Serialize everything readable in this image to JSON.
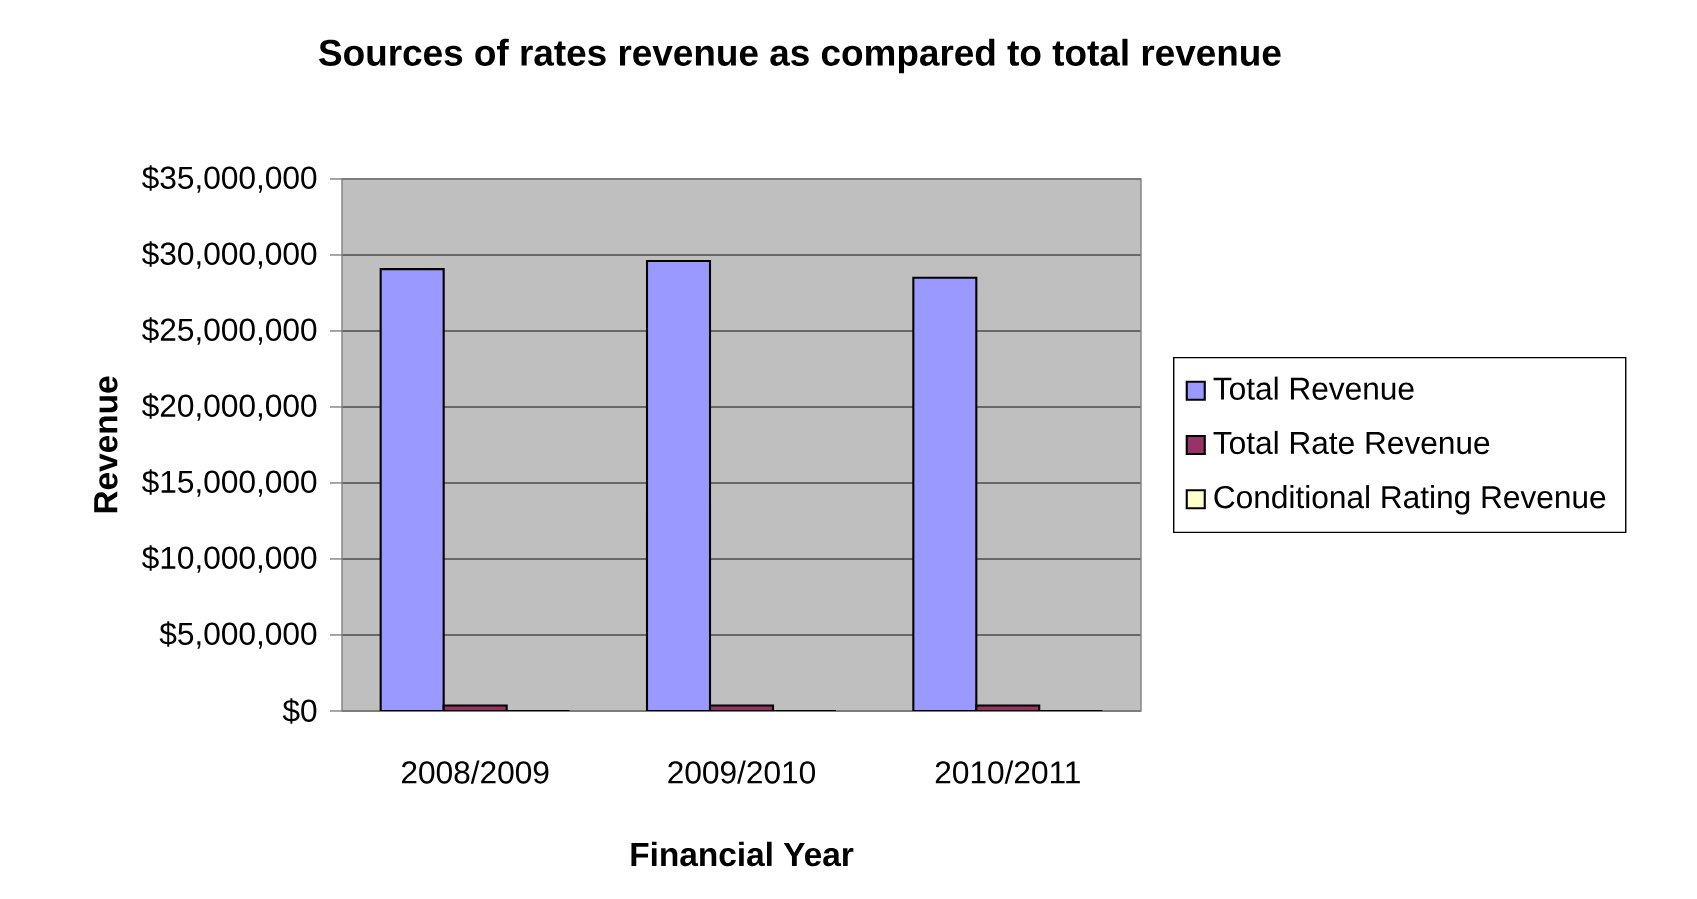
{
  "chart_data": {
    "type": "bar",
    "title": "Sources of rates revenue as compared to total revenue",
    "xlabel": "Financial Year",
    "ylabel": "Revenue",
    "categories": [
      "2008/2009",
      "2009/2010",
      "2010/2011"
    ],
    "series": [
      {
        "name": "Total Revenue",
        "color": "#9999ff",
        "values": [
          29070000,
          29600000,
          28500000
        ]
      },
      {
        "name": "Total Rate Revenue",
        "color": "#993366",
        "values": [
          360000,
          360000,
          360000
        ]
      },
      {
        "name": "Conditional Rating Revenue",
        "color": "#ffffcc",
        "values": [
          0,
          0,
          0
        ]
      }
    ],
    "ylim": [
      0,
      35000000
    ],
    "yticks": [
      {
        "value": 0,
        "label": "$0"
      },
      {
        "value": 5000000,
        "label": "$5,000,000"
      },
      {
        "value": 10000000,
        "label": "$10,000,000"
      },
      {
        "value": 15000000,
        "label": "$15,000,000"
      },
      {
        "value": 20000000,
        "label": "$20,000,000"
      },
      {
        "value": 25000000,
        "label": "$25,000,000"
      },
      {
        "value": 30000000,
        "label": "$30,000,000"
      },
      {
        "value": 35000000,
        "label": "$35,000,000"
      }
    ],
    "grid": "y",
    "legend": "right"
  }
}
